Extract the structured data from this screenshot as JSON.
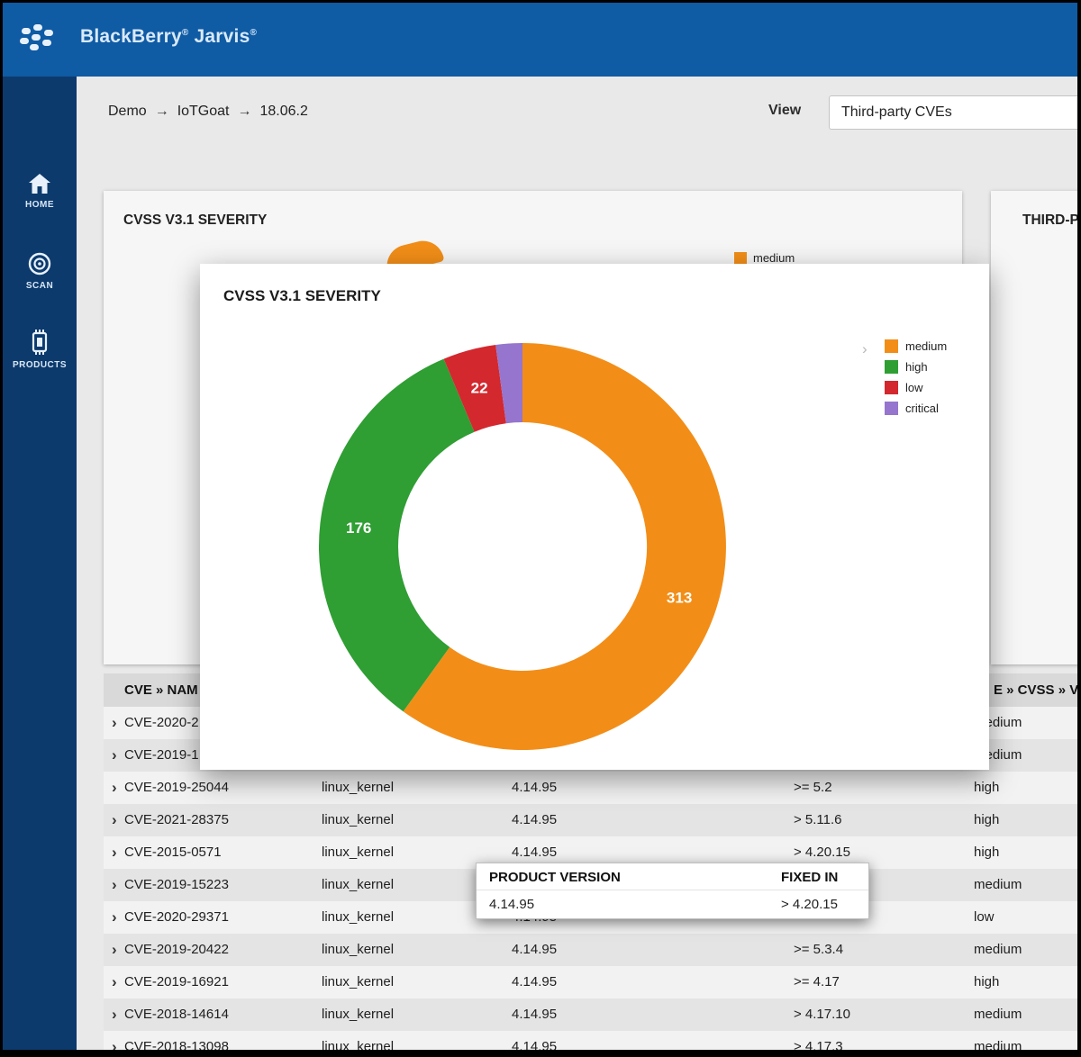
{
  "header": {
    "brand": "BlackBerry",
    "product": "Jarvis",
    "reg": "®",
    "brand_color": "#0f5ba4",
    "sidebar_color": "#0c3a6d"
  },
  "sidebar": {
    "items": [
      {
        "label": "HOME",
        "icon": "home-icon"
      },
      {
        "label": "SCAN",
        "icon": "scan-icon"
      },
      {
        "label": "PRODUCTS",
        "icon": "products-icon"
      }
    ]
  },
  "toolbar": {
    "breadcrumb_parts": [
      "Demo",
      "IoTGoat",
      "18.06.2"
    ],
    "breadcrumb_separator": "→",
    "view_label": "View",
    "view_value": "Third-party CVEs"
  },
  "background_cards": {
    "severity_card_title": "CVSS V3.1 SEVERITY",
    "severity_card_legend_item": "medium",
    "third_party_card_title": "THIRD-PA"
  },
  "modal": {
    "title": "CVSS V3.1 SEVERITY",
    "legend_chevron": "›"
  },
  "chart_data": {
    "type": "pie",
    "donut": true,
    "title": "CVSS V3.1 SEVERITY",
    "legend_position": "right",
    "start_angle_deg": -90,
    "direction": "clockwise",
    "segments": [
      {
        "label": "medium",
        "value": 313,
        "color": "#f28e18",
        "value_label": "313"
      },
      {
        "label": "high",
        "value": 176,
        "color": "#2f9e33",
        "value_label": "176"
      },
      {
        "label": "low",
        "value": 22,
        "color": "#d3282e",
        "value_label": "22"
      },
      {
        "label": "critical",
        "value": 11,
        "color": "#9575cd",
        "value_label": ""
      }
    ]
  },
  "table": {
    "header_left_fragment": "CVE » NAM",
    "header_right_fragment": "E » CVSS » V",
    "row_expand_glyph": "›",
    "rows": [
      {
        "cve": "CVE-2020-2",
        "product": "",
        "version": "",
        "fixed_in": "",
        "severity": "medium"
      },
      {
        "cve": "CVE-2019-1",
        "product": "",
        "version": "",
        "fixed_in": "",
        "severity": "medium"
      },
      {
        "cve": "CVE-2019-25044",
        "product": "linux_kernel",
        "version": "4.14.95",
        "fixed_in": ">= 5.2",
        "severity": "high"
      },
      {
        "cve": "CVE-2021-28375",
        "product": "linux_kernel",
        "version": "4.14.95",
        "fixed_in": "> 5.11.6",
        "severity": "high"
      },
      {
        "cve": "CVE-2015-0571",
        "product": "linux_kernel",
        "version": "4.14.95",
        "fixed_in": "> 4.20.15",
        "severity": "high"
      },
      {
        "cve": "CVE-2019-15223",
        "product": "linux_kernel",
        "version": "",
        "fixed_in": "",
        "severity": "medium"
      },
      {
        "cve": "CVE-2020-29371",
        "product": "linux_kernel",
        "version": "4.14.95",
        "fixed_in": "",
        "severity": "low"
      },
      {
        "cve": "CVE-2019-20422",
        "product": "linux_kernel",
        "version": "4.14.95",
        "fixed_in": ">= 5.3.4",
        "severity": "medium"
      },
      {
        "cve": "CVE-2019-16921",
        "product": "linux_kernel",
        "version": "4.14.95",
        "fixed_in": ">= 4.17",
        "severity": "high"
      },
      {
        "cve": "CVE-2018-14614",
        "product": "linux_kernel",
        "version": "4.14.95",
        "fixed_in": "> 4.17.10",
        "severity": "medium"
      },
      {
        "cve": "CVE-2018-13098",
        "product": "linux_kernel",
        "version": "4.14.95",
        "fixed_in": "> 4.17.3",
        "severity": "medium"
      }
    ]
  },
  "tooltip": {
    "col1_header": "PRODUCT VERSION",
    "col2_header": "FIXED IN",
    "col1_value": "4.14.95",
    "col2_value": "> 4.20.15"
  }
}
